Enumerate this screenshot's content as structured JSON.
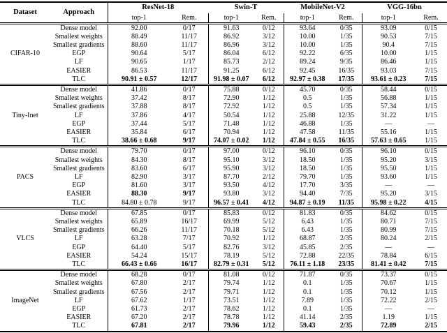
{
  "table": {
    "headers": {
      "dataset": "Dataset",
      "approach": "Approach",
      "models": [
        "ResNet-18",
        "Swin-T",
        "MobileNet-V2",
        "VGG-16bn"
      ],
      "sub": {
        "top1": "top-1",
        "rem": "Rem."
      }
    },
    "sections": [
      {
        "dataset": "CIFAR-10",
        "rows": [
          {
            "approach": "Dense model",
            "cells": [
              "92.00",
              "0/17",
              "91.63",
              "0/12",
              "93.64",
              "0/35",
              "93.09",
              "0/15"
            ],
            "bold": []
          },
          {
            "approach": "Smallest weights",
            "cells": [
              "88.49",
              "11/17",
              "86.92",
              "3/12",
              "10.00",
              "1/35",
              "90.53",
              "7/15"
            ],
            "bold": []
          },
          {
            "approach": "Smallest gradients",
            "cells": [
              "88.60",
              "11/17",
              "86.96",
              "3/12",
              "10.00",
              "1/35",
              "90.4",
              "7/15"
            ],
            "bold": []
          },
          {
            "approach": "EGP",
            "cells": [
              "90.64",
              "5/17",
              "86.04",
              "6/12",
              "92.22",
              "6/35",
              "10.00",
              "1/15"
            ],
            "bold": []
          },
          {
            "approach": "LF",
            "cells": [
              "90.65",
              "1/17",
              "85.73",
              "2/12",
              "89.24",
              "9/35",
              "86.46",
              "1/15"
            ],
            "bold": []
          },
          {
            "approach": "EASIER",
            "cells": [
              "86.53",
              "11/17",
              "91.25",
              "6/12",
              "92.45",
              "16/35",
              "93.03",
              "7/15"
            ],
            "bold": []
          },
          {
            "approach": "TLC",
            "cells": [
              "90.91 ± 0.57",
              "12/17",
              "91.98 ± 0.07",
              "6/12",
              "92.97 ± 0.38",
              "17/35",
              "93.61 ± 0.23",
              "7/15"
            ],
            "bold": [
              0,
              1,
              2,
              3,
              4,
              5,
              6,
              7
            ]
          }
        ]
      },
      {
        "dataset": "Tiny-Inet",
        "rows": [
          {
            "approach": "Dense model",
            "cells": [
              "41.86",
              "0/17",
              "75.88",
              "0/12",
              "45.70",
              "0/35",
              "58.44",
              "0/15"
            ],
            "bold": []
          },
          {
            "approach": "Smallest weights",
            "cells": [
              "37.42",
              "8/17",
              "72.90",
              "1/12",
              "0.5",
              "1/35",
              "56.88",
              "1/15"
            ],
            "bold": []
          },
          {
            "approach": "Smallest gradients",
            "cells": [
              "37.88",
              "8/17",
              "72.92",
              "1/12",
              "0.5",
              "1/35",
              "57.34",
              "1/15"
            ],
            "bold": []
          },
          {
            "approach": "LF",
            "cells": [
              "37.86",
              "4/17",
              "50.54",
              "1/12",
              "25.88",
              "12/35",
              "31.22",
              "1/15"
            ],
            "bold": []
          },
          {
            "approach": "EGP",
            "cells": [
              "37.44",
              "5/17",
              "71.48",
              "1/12",
              "46.88",
              "1/35",
              "—",
              "—"
            ],
            "bold": []
          },
          {
            "approach": "EASIER",
            "cells": [
              "35.84",
              "6/17",
              "70.94",
              "1/12",
              "47.58",
              "11/35",
              "55.16",
              "1/15"
            ],
            "bold": []
          },
          {
            "approach": "TLC",
            "cells": [
              "38.66 ± 0.68",
              "9/17",
              "74.07 ± 0.02",
              "1/12",
              "47.84 ± 0.55",
              "16/35",
              "57.63 ± 0.65",
              "1/15"
            ],
            "bold": [
              0,
              1,
              2,
              3,
              4,
              5,
              6
            ]
          }
        ]
      },
      {
        "dataset": "PACS",
        "rows": [
          {
            "approach": "Dense model",
            "cells": [
              "79.70",
              "0/17",
              "97.00",
              "0/12",
              "96.10",
              "0/35",
              "96.10",
              "0/15"
            ],
            "bold": []
          },
          {
            "approach": "Smallest weights",
            "cells": [
              "84.30",
              "8/17",
              "95.10",
              "3/12",
              "18.50",
              "1/35",
              "95.20",
              "3/15"
            ],
            "bold": []
          },
          {
            "approach": "Smallest gradients",
            "cells": [
              "83.60",
              "6/17",
              "95.90",
              "3/12",
              "18.50",
              "1/35",
              "95.50",
              "1/15"
            ],
            "bold": []
          },
          {
            "approach": "LF",
            "cells": [
              "82.90",
              "3/17",
              "87.70",
              "2/12",
              "79.70",
              "1/35",
              "93.60",
              "1/15"
            ],
            "bold": []
          },
          {
            "approach": "EGP",
            "cells": [
              "81.60",
              "3/17",
              "93.50",
              "4/12",
              "17.70",
              "3/35",
              "—",
              "—"
            ],
            "bold": []
          },
          {
            "approach": "EASIER",
            "cells": [
              "88.30",
              "9/17",
              "93.80",
              "3/12",
              "94.40",
              "7/35",
              "95.20",
              "3/15"
            ],
            "bold": [
              0,
              1
            ]
          },
          {
            "approach": "TLC",
            "cells": [
              "84.80 ± 0.78",
              "9/17",
              "96.57 ± 0.41",
              "4/12",
              "94.87 ± 0.19",
              "11/35",
              "95.98 ± 0.22",
              "4/15"
            ],
            "bold": [
              2,
              3,
              4,
              5,
              6,
              7
            ]
          }
        ]
      },
      {
        "dataset": "VLCS",
        "rows": [
          {
            "approach": "Dense model",
            "cells": [
              "67.85",
              "0/17",
              "85.83",
              "0/12",
              "81.83",
              "0/35",
              "84.62",
              "0/15"
            ],
            "bold": []
          },
          {
            "approach": "Smallest weights",
            "cells": [
              "65.89",
              "16/17",
              "69.99",
              "5/12",
              "6.43",
              "1/35",
              "80.71",
              "7/15"
            ],
            "bold": []
          },
          {
            "approach": "Smallest gradients",
            "cells": [
              "66.26",
              "11/17",
              "70.18",
              "5/12",
              "6.43",
              "1/35",
              "80.99",
              "7/15"
            ],
            "bold": []
          },
          {
            "approach": "LF",
            "cells": [
              "63.28",
              "7/17",
              "70.92",
              "1/12",
              "68.87",
              "2/35",
              "80.24",
              "2/15"
            ],
            "bold": []
          },
          {
            "approach": "EGP",
            "cells": [
              "64.40",
              "5/17",
              "82.76",
              "3/12",
              "45.85",
              "2/35",
              "—",
              "—"
            ],
            "bold": []
          },
          {
            "approach": "EASIER",
            "cells": [
              "54.24",
              "15/17",
              "78.19",
              "5/12",
              "72.88",
              "22/35",
              "78.84",
              "6/15"
            ],
            "bold": []
          },
          {
            "approach": "TLC",
            "cells": [
              "66.43 ± 0.66",
              "16/17",
              "82.79 ± 0.31",
              "5/12",
              "76.11 ± 1.18",
              "23/35",
              "81.41 ± 0.42",
              "7/15"
            ],
            "bold": [
              0,
              1,
              2,
              3,
              4,
              5,
              6,
              7
            ]
          }
        ]
      },
      {
        "dataset": "ImageNet",
        "rows": [
          {
            "approach": "Dense model",
            "cells": [
              "68.28",
              "0/17",
              "81.08",
              "0/12",
              "71.87",
              "0/35",
              "73.37",
              "0/15"
            ],
            "bold": []
          },
          {
            "approach": "Smallest weights",
            "cells": [
              "67.80",
              "2/17",
              "79.74",
              "1/12",
              "0.1",
              "1/35",
              "70.67",
              "1/15"
            ],
            "bold": []
          },
          {
            "approach": "Smallest gradients",
            "cells": [
              "67.56",
              "2/17",
              "79.71",
              "1/12",
              "0.1",
              "1/35",
              "70.12",
              "1/15"
            ],
            "bold": []
          },
          {
            "approach": "LF",
            "cells": [
              "67.62",
              "1/17",
              "73.51",
              "1/12",
              "7.89",
              "1/35",
              "72.22",
              "2/15"
            ],
            "bold": []
          },
          {
            "approach": "EGP",
            "cells": [
              "61.73",
              "2/17",
              "78.62",
              "1/12",
              "0.1",
              "1/35",
              "—",
              "—"
            ],
            "bold": []
          },
          {
            "approach": "EASIER",
            "cells": [
              "67.20",
              "2/17",
              "78.78",
              "1/12",
              "41.14",
              "2/35",
              "1.19",
              "1/15"
            ],
            "bold": []
          },
          {
            "approach": "TLC",
            "cells": [
              "67.81",
              "2/17",
              "79.96",
              "1/12",
              "59.43",
              "2/35",
              "72.89",
              "2/15"
            ],
            "bold": [
              0,
              1,
              2,
              3,
              4,
              5,
              6,
              7
            ]
          }
        ]
      }
    ]
  }
}
